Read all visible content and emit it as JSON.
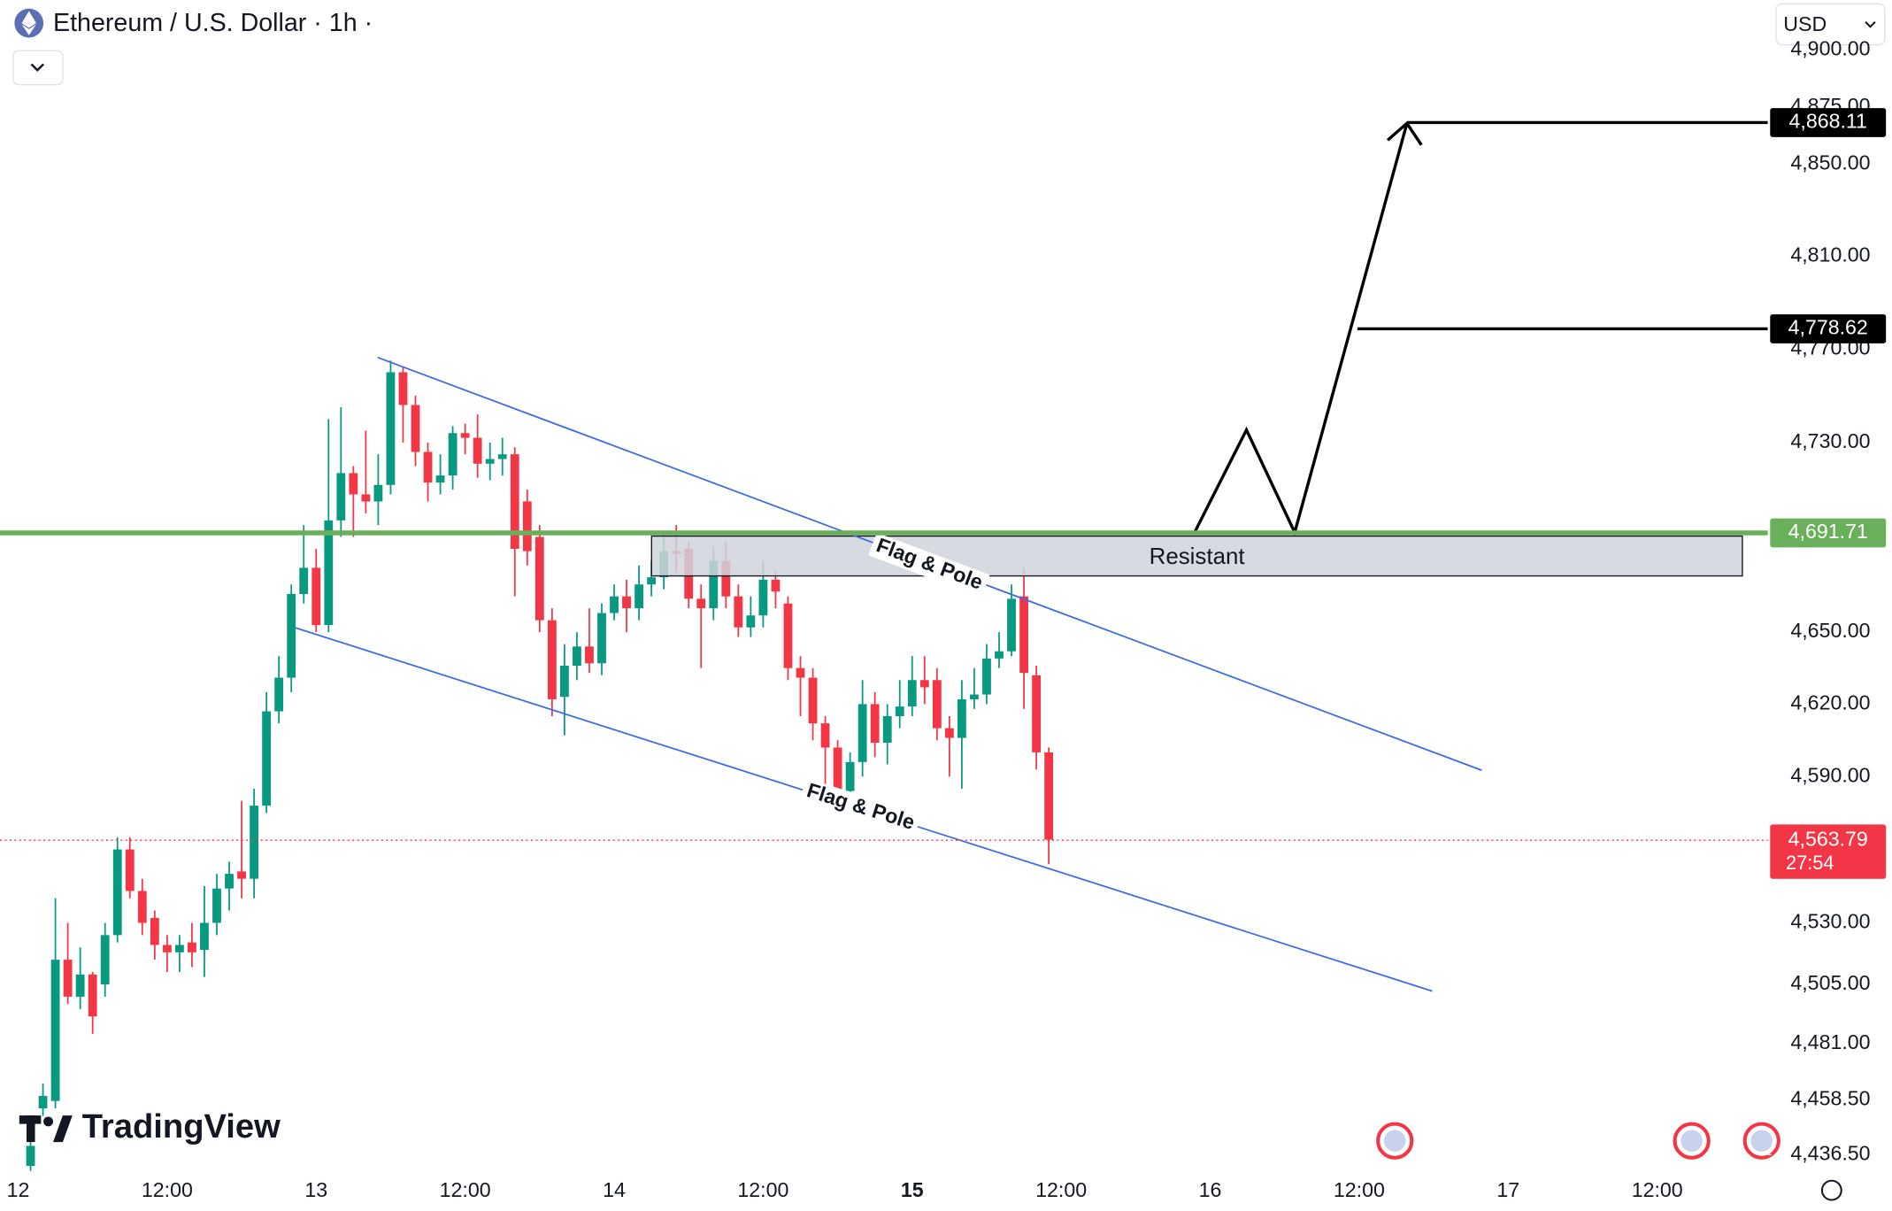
{
  "chart_data": {
    "type": "candlestick",
    "title": "Ethereum / U.S. Dollar · 1h ·",
    "currency": "USD",
    "log_scale": true,
    "up_color": "#089981",
    "down_color": "#f23645",
    "x": [
      1,
      2,
      3,
      4,
      5,
      6,
      7,
      8,
      9,
      10,
      11,
      12,
      13,
      14,
      15,
      16,
      17,
      18,
      19,
      20,
      21,
      22,
      23,
      24,
      25,
      26,
      27,
      28,
      29,
      30,
      31,
      32,
      33,
      34,
      35,
      36,
      37,
      38,
      39,
      40,
      41,
      42,
      43,
      44,
      45,
      46,
      47,
      48,
      49,
      50,
      51,
      52,
      53,
      54,
      55,
      56,
      57,
      58,
      59,
      60,
      61,
      62,
      63,
      64,
      65,
      66,
      67,
      68,
      69,
      70,
      71,
      72,
      73,
      74,
      75,
      76,
      77,
      78,
      79,
      80,
      81,
      82,
      83
    ],
    "open": [
      4432,
      4455,
      4458,
      4515,
      4500,
      4509,
      4505,
      4525,
      4560,
      4543,
      4532,
      4521,
      4518,
      4522,
      4519,
      4530,
      4544,
      4551,
      4548,
      4578,
      4617,
      4631,
      4666,
      4677,
      4653,
      4697,
      4717,
      4708,
      4705,
      4712,
      4760,
      4746,
      4726,
      4713,
      4716,
      4734,
      4732,
      4721,
      4723,
      4725,
      4705,
      4690,
      4655,
      4623,
      4636,
      4644,
      4637,
      4658,
      4665,
      4660,
      4670,
      4673,
      4684,
      4685,
      4664,
      4660,
      4680,
      4665,
      4652,
      4657,
      4672,
      4662,
      4635,
      4631,
      4612,
      4602,
      4584,
      4596,
      4620,
      4604,
      4615,
      4619,
      4630,
      4630,
      4610,
      4606,
      4622,
      4624,
      4639,
      4642,
      4665,
      4632,
      4600
    ],
    "high": [
      4447,
      4465,
      4540,
      4530,
      4520,
      4510,
      4530,
      4565,
      4565,
      4548,
      4535,
      4525,
      4525,
      4530,
      4545,
      4550,
      4555,
      4580,
      4585,
      4625,
      4640,
      4670,
      4695,
      4685,
      4740,
      4745,
      4720,
      4735,
      4725,
      4765,
      4762,
      4750,
      4730,
      4725,
      4737,
      4738,
      4742,
      4730,
      4732,
      4728,
      4710,
      4695,
      4660,
      4645,
      4650,
      4660,
      4662,
      4670,
      4672,
      4678,
      4680,
      4692,
      4695,
      4688,
      4670,
      4686,
      4688,
      4670,
      4665,
      4680,
      4676,
      4665,
      4640,
      4635,
      4615,
      4605,
      4600,
      4630,
      4625,
      4620,
      4630,
      4640,
      4640,
      4635,
      4615,
      4630,
      4635,
      4645,
      4650,
      4670,
      4677,
      4636,
      4602
    ],
    "low": [
      4430,
      4452,
      4455,
      4497,
      4495,
      4485,
      4500,
      4522,
      4540,
      4525,
      4515,
      4510,
      4510,
      4512,
      4508,
      4525,
      4535,
      4540,
      4540,
      4575,
      4612,
      4625,
      4662,
      4650,
      4650,
      4690,
      4690,
      4700,
      4695,
      4708,
      4730,
      4720,
      4705,
      4708,
      4710,
      4725,
      4715,
      4714,
      4716,
      4665,
      4678,
      4650,
      4615,
      4607,
      4630,
      4633,
      4632,
      4655,
      4650,
      4655,
      4665,
      4668,
      4675,
      4660,
      4635,
      4655,
      4660,
      4648,
      4648,
      4652,
      4660,
      4630,
      4615,
      4605,
      4585,
      4580,
      4578,
      4590,
      4598,
      4595,
      4610,
      4615,
      4620,
      4605,
      4590,
      4585,
      4618,
      4620,
      4635,
      4640,
      4618,
      4593,
      4554
    ],
    "close": [
      4440,
      4460,
      4515,
      4500,
      4509,
      4492,
      4525,
      4560,
      4543,
      4530,
      4521,
      4518,
      4521,
      4518,
      4530,
      4544,
      4550,
      4548,
      4578,
      4617,
      4631,
      4666,
      4677,
      4653,
      4697,
      4717,
      4708,
      4705,
      4712,
      4760,
      4746,
      4726,
      4713,
      4716,
      4734,
      4732,
      4721,
      4723,
      4725,
      4685,
      4684,
      4655,
      4622,
      4636,
      4644,
      4637,
      4658,
      4665,
      4660,
      4670,
      4673,
      4684,
      4683,
      4664,
      4660,
      4680,
      4665,
      4652,
      4657,
      4672,
      4667,
      4635,
      4631,
      4612,
      4602,
      4584,
      4596,
      4620,
      4604,
      4615,
      4619,
      4630,
      4627,
      4610,
      4606,
      4622,
      4624,
      4639,
      4642,
      4664,
      4633,
      4600,
      4564
    ],
    "xlim": [
      -1.46,
      140.9
    ],
    "xticks": [
      {
        "value": 0,
        "label": "12"
      },
      {
        "value": 12,
        "label": "12:00"
      },
      {
        "value": 24,
        "label": "13"
      },
      {
        "value": 36,
        "label": "12:00"
      },
      {
        "value": 48,
        "label": "14"
      },
      {
        "value": 60,
        "label": "12:00"
      },
      {
        "value": 72,
        "label": "15",
        "bold": true
      },
      {
        "value": 84,
        "label": "12:00"
      },
      {
        "value": 96,
        "label": "16"
      },
      {
        "value": 108,
        "label": "12:00"
      },
      {
        "value": 120,
        "label": "17"
      },
      {
        "value": 132,
        "label": "12:00"
      }
    ],
    "ylim": [
      4430,
      4922
    ],
    "yticks": [
      {
        "value": 4900,
        "label": "4,900.00"
      },
      {
        "value": 4875,
        "label": "4,875.00"
      },
      {
        "value": 4850,
        "label": "4,850.00"
      },
      {
        "value": 4810,
        "label": "4,810.00"
      },
      {
        "value": 4770,
        "label": "4,770.00"
      },
      {
        "value": 4730,
        "label": "4,730.00"
      },
      {
        "value": 4650,
        "label": "4,650.00"
      },
      {
        "value": 4620,
        "label": "4,620.00"
      },
      {
        "value": 4590,
        "label": "4,590.00"
      },
      {
        "value": 4530,
        "label": "4,530.00"
      },
      {
        "value": 4505,
        "label": "4,505.00"
      },
      {
        "value": 4481,
        "label": "4,481.00"
      },
      {
        "value": 4458.5,
        "label": "4,458.50"
      },
      {
        "value": 4436.5,
        "label": "4,436.50"
      }
    ],
    "levels": [
      {
        "value": 4868.11,
        "label": "4,868.11",
        "color": "#000000"
      },
      {
        "value": 4778.62,
        "label": "4,778.62",
        "color": "#000000"
      },
      {
        "value": 4691.71,
        "label": "4,691.71",
        "color": "#6aaf5a"
      }
    ],
    "last_price": {
      "value": 4563.79,
      "label": "4,563.79",
      "color": "#f23645"
    },
    "countdown": "27:54",
    "annotations": {
      "zone": "Resistant",
      "channel_upper": "Flag & Pole",
      "channel_lower": "Flag & Pole"
    },
    "brand": "TradingView"
  }
}
